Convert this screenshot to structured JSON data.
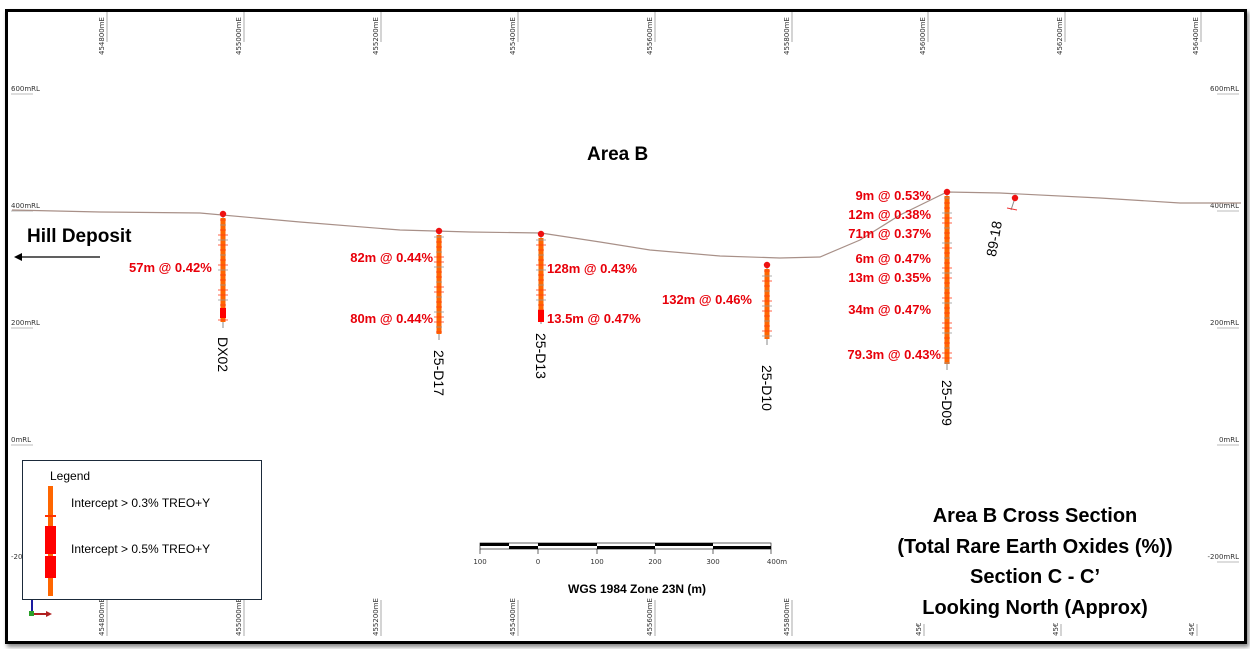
{
  "area_title": "Area B",
  "hill_deposit": "Hill Deposit",
  "easting_labels": [
    "454800mE",
    "455000mE",
    "455200mE",
    "455400mE",
    "455600mE",
    "455800mE",
    "456000mE",
    "456200mE",
    "456400mE"
  ],
  "bottom_easting_truncated": [
    "45€",
    "45€",
    "45€"
  ],
  "elevation_labels": [
    "600mRL",
    "400mRL",
    "200mRL",
    "0mRL",
    "-200mRL"
  ],
  "elevation_left_truncated": "-20",
  "holes": [
    {
      "name": "DX02",
      "intercepts": [
        "57m @ 0.42%"
      ]
    },
    {
      "name": "25-D17",
      "intercepts": [
        "82m @ 0.44%",
        "80m @ 0.44%"
      ]
    },
    {
      "name": "25-D13",
      "intercepts": [
        "128m @ 0.43%",
        "13.5m @ 0.47%"
      ]
    },
    {
      "name": "25-D10",
      "intercepts": [
        "132m @ 0.46%"
      ]
    },
    {
      "name": "25-D09",
      "intercepts": [
        "9m @ 0.53%",
        "12m @ 0.38%",
        "71m @ 0.37%",
        "6m @ 0.47%",
        "13m @ 0.35%",
        "34m @ 0.47%",
        "79.3m @ 0.43%"
      ]
    },
    {
      "name": "89-18",
      "intercepts": []
    }
  ],
  "legend": {
    "title": "Legend",
    "items": [
      "Intercept > 0.3% TREO+Y",
      "Intercept > 0.5% TREO+Y"
    ]
  },
  "scale_bar": {
    "ticks": [
      "100",
      "0",
      "100",
      "200",
      "300",
      "400m"
    ],
    "caption": "WGS 1984 Zone 23N (m)"
  },
  "section_title": [
    "Area B Cross Section",
    "(Total Rare Earth Oxides (%))",
    "Section C - C’",
    "Looking North (Approx)"
  ],
  "colors": {
    "orange": "#ff6600",
    "red": "#ff0000",
    "label_red": "#e8000a",
    "terrain": "#a89088"
  }
}
